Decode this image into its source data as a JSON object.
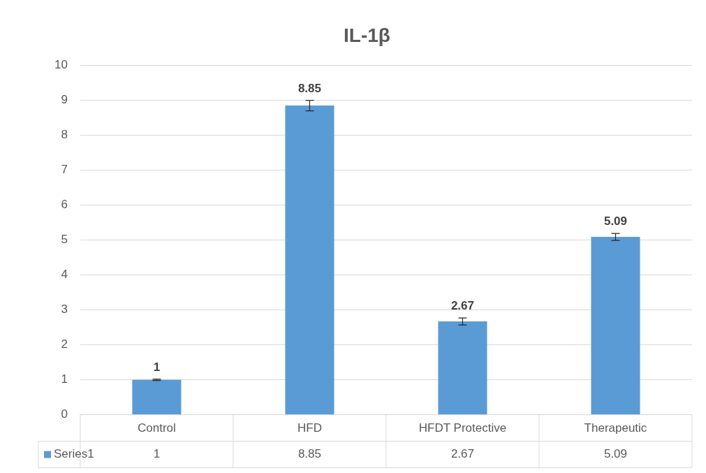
{
  "chart_data": {
    "type": "bar",
    "title": "IL-1β",
    "categories": [
      "Control",
      "HFD",
      "HFDT Protective",
      "Therapeutic"
    ],
    "series": [
      {
        "name": "Series1",
        "color": "#5b9bd5",
        "values": [
          1,
          8.85,
          2.67,
          5.09
        ],
        "errors": [
          0.02,
          0.15,
          0.1,
          0.1
        ],
        "value_labels": [
          "1",
          "8.85",
          "2.67",
          "5.09"
        ]
      }
    ],
    "ylim": [
      0,
      10
    ],
    "yticks": [
      0,
      1,
      2,
      3,
      4,
      5,
      6,
      7,
      8,
      9,
      10
    ],
    "annotations": [
      "1",
      "8.85",
      "2.67",
      "5.09"
    ],
    "grid": "y",
    "data_labels": true,
    "legend": "bottom"
  }
}
